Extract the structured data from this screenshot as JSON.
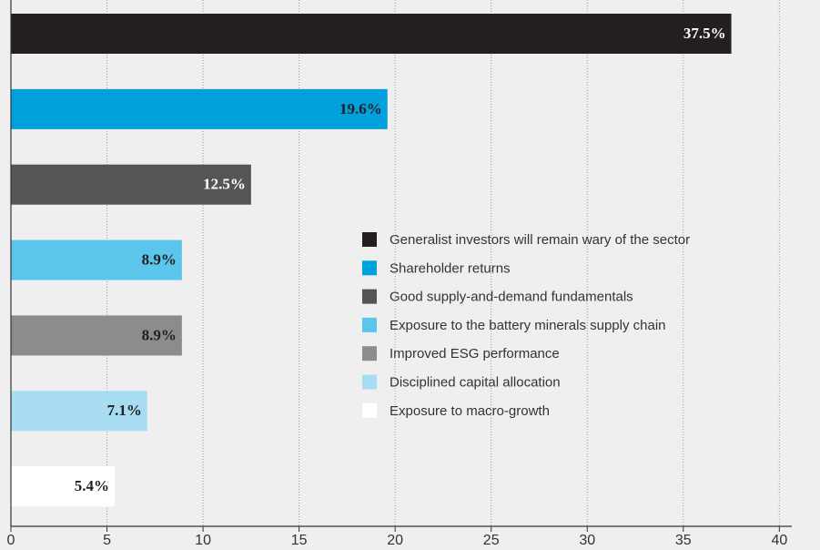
{
  "chart_data": {
    "type": "barh",
    "categories": [
      "Generalist investors will remain wary of the sector",
      "Shareholder returns",
      "Good supply-and-demand fundamentals",
      "Exposure to the battery minerals supply chain",
      "Improved ESG performance",
      "Disciplined capital allocation",
      "Exposure to macro-growth"
    ],
    "values": [
      37.5,
      19.6,
      12.5,
      8.9,
      8.9,
      7.1,
      5.4
    ],
    "value_labels": [
      "37.5%",
      "19.6%",
      "12.5%",
      "8.9%",
      "8.9%",
      "7.1%",
      "5.4%"
    ],
    "colors": [
      "#231f20",
      "#00a0dc",
      "#555555",
      "#5bc5ec",
      "#8c8c8c",
      "#a8dcf3",
      "#ffffff"
    ],
    "xlim": [
      0,
      41.5
    ],
    "xticks": [
      0,
      5,
      10,
      15,
      20,
      25,
      30,
      35,
      40
    ],
    "grid": true
  }
}
